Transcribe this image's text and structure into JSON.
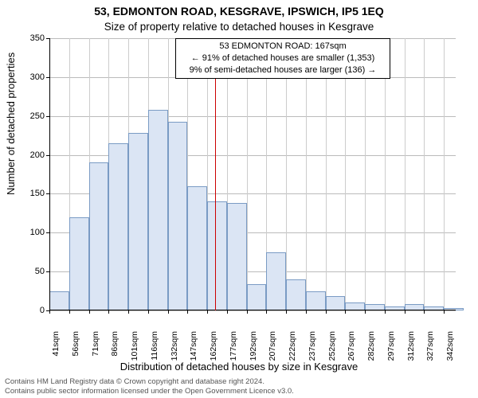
{
  "chart": {
    "type": "histogram",
    "title_main": "53, EDMONTON ROAD, KESGRAVE, IPSWICH, IP5 1EQ",
    "title_sub": "Size of property relative to detached houses in Kesgrave",
    "title_fontsize": 14,
    "annotation": {
      "line1": "53 EDMONTON ROAD: 167sqm",
      "line2": "← 91% of detached houses are smaller (1,353)",
      "line3": "9% of semi-detached houses are larger (136) →"
    },
    "y_axis": {
      "label": "Number of detached properties",
      "min": 0,
      "max": 350,
      "tick_step": 50,
      "ticks": [
        0,
        50,
        100,
        150,
        200,
        250,
        300,
        350
      ]
    },
    "x_axis": {
      "label": "Distribution of detached houses by size in Kesgrave",
      "tick_labels": [
        "41sqm",
        "56sqm",
        "71sqm",
        "86sqm",
        "101sqm",
        "116sqm",
        "132sqm",
        "147sqm",
        "162sqm",
        "177sqm",
        "192sqm",
        "207sqm",
        "222sqm",
        "237sqm",
        "252sqm",
        "267sqm",
        "282sqm",
        "297sqm",
        "312sqm",
        "327sqm",
        "342sqm"
      ],
      "bin_start": 41,
      "bin_width": 15,
      "bin_end": 350
    },
    "bars": {
      "values": [
        25,
        120,
        190,
        215,
        228,
        258,
        243,
        160,
        140,
        138,
        34,
        75,
        40,
        25,
        18,
        10,
        8,
        5,
        8,
        5,
        3
      ],
      "fill_color": "#dbe5f4",
      "border_color": "#7a9bc4"
    },
    "reference": {
      "value": 167,
      "color": "#cc0000"
    },
    "plot": {
      "background": "#ffffff",
      "grid_color": "#bbbbbb"
    },
    "footer": {
      "line1": "Contains HM Land Registry data © Crown copyright and database right 2024.",
      "line2": "Contains public sector information licensed under the Open Government Licence v3.0."
    }
  }
}
